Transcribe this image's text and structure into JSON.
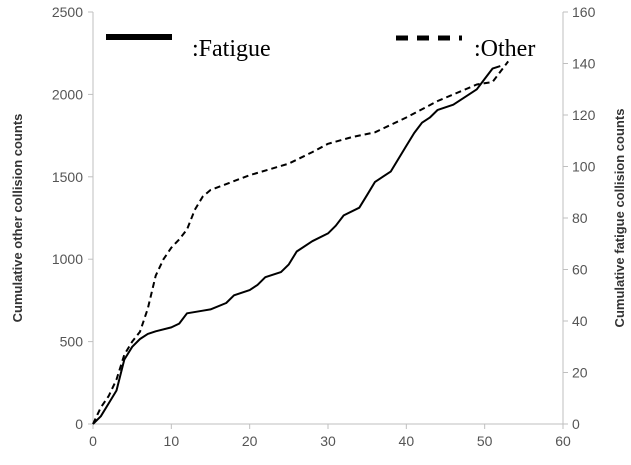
{
  "chart_data": {
    "type": "line",
    "title": "",
    "xlabel": "",
    "ylabel_left": "Cumulative other collision counts",
    "ylabel_right": "Cumulative fatigue collision counts",
    "xlim": [
      0,
      60
    ],
    "ylim_left": [
      0,
      2500
    ],
    "ylim_right": [
      0,
      160
    ],
    "x_ticks": [
      "0",
      "10",
      "20",
      "30",
      "40",
      "50",
      "60"
    ],
    "y_left_ticks": [
      "0",
      "500",
      "1000",
      "1500",
      "2000",
      "2500"
    ],
    "y_right_ticks": [
      "0",
      "20",
      "40",
      "60",
      "80",
      "100",
      "120",
      "140",
      "160"
    ],
    "grid": false,
    "legend_position": "top",
    "series": [
      {
        "name": ":Fatigue",
        "axis": "right",
        "style": "solid",
        "color": "#000000",
        "points": [
          [
            0,
            0
          ],
          [
            1,
            3
          ],
          [
            2,
            8
          ],
          [
            3,
            13
          ],
          [
            4,
            25
          ],
          [
            5,
            30
          ],
          [
            6,
            33
          ],
          [
            7,
            35
          ],
          [
            8,
            36
          ],
          [
            10,
            37.5
          ],
          [
            11,
            39
          ],
          [
            12,
            43
          ],
          [
            14,
            44
          ],
          [
            15,
            44.5
          ],
          [
            17,
            47
          ],
          [
            18,
            50
          ],
          [
            20,
            52
          ],
          [
            21,
            54
          ],
          [
            22,
            57
          ],
          [
            24,
            59
          ],
          [
            25,
            62
          ],
          [
            26,
            67
          ],
          [
            28,
            71
          ],
          [
            30,
            74
          ],
          [
            31,
            77
          ],
          [
            32,
            81
          ],
          [
            34,
            84
          ],
          [
            35,
            89
          ],
          [
            36,
            94
          ],
          [
            38,
            98
          ],
          [
            40,
            108
          ],
          [
            41,
            113
          ],
          [
            42,
            117
          ],
          [
            43,
            119
          ],
          [
            44,
            122
          ],
          [
            46,
            124
          ],
          [
            48,
            128
          ],
          [
            49,
            130
          ],
          [
            50,
            134
          ],
          [
            51,
            138
          ],
          [
            52,
            139
          ]
        ]
      },
      {
        "name": ":Other",
        "axis": "left",
        "style": "dashed",
        "color": "#000000",
        "points": [
          [
            0,
            0
          ],
          [
            1,
            100
          ],
          [
            2,
            170
          ],
          [
            3,
            270
          ],
          [
            4,
            420
          ],
          [
            5,
            500
          ],
          [
            6,
            560
          ],
          [
            7,
            700
          ],
          [
            8,
            900
          ],
          [
            9,
            1000
          ],
          [
            10,
            1070
          ],
          [
            11,
            1120
          ],
          [
            12,
            1180
          ],
          [
            13,
            1300
          ],
          [
            14,
            1380
          ],
          [
            15,
            1420
          ],
          [
            20,
            1510
          ],
          [
            25,
            1580
          ],
          [
            28,
            1650
          ],
          [
            30,
            1700
          ],
          [
            33,
            1740
          ],
          [
            36,
            1770
          ],
          [
            40,
            1860
          ],
          [
            44,
            1960
          ],
          [
            47,
            2020
          ],
          [
            49,
            2060
          ],
          [
            51,
            2075
          ],
          [
            53,
            2200
          ]
        ]
      }
    ]
  },
  "colors": {
    "line": "#000000",
    "axis": "#bfbfbf",
    "tick_text": "#555555"
  }
}
